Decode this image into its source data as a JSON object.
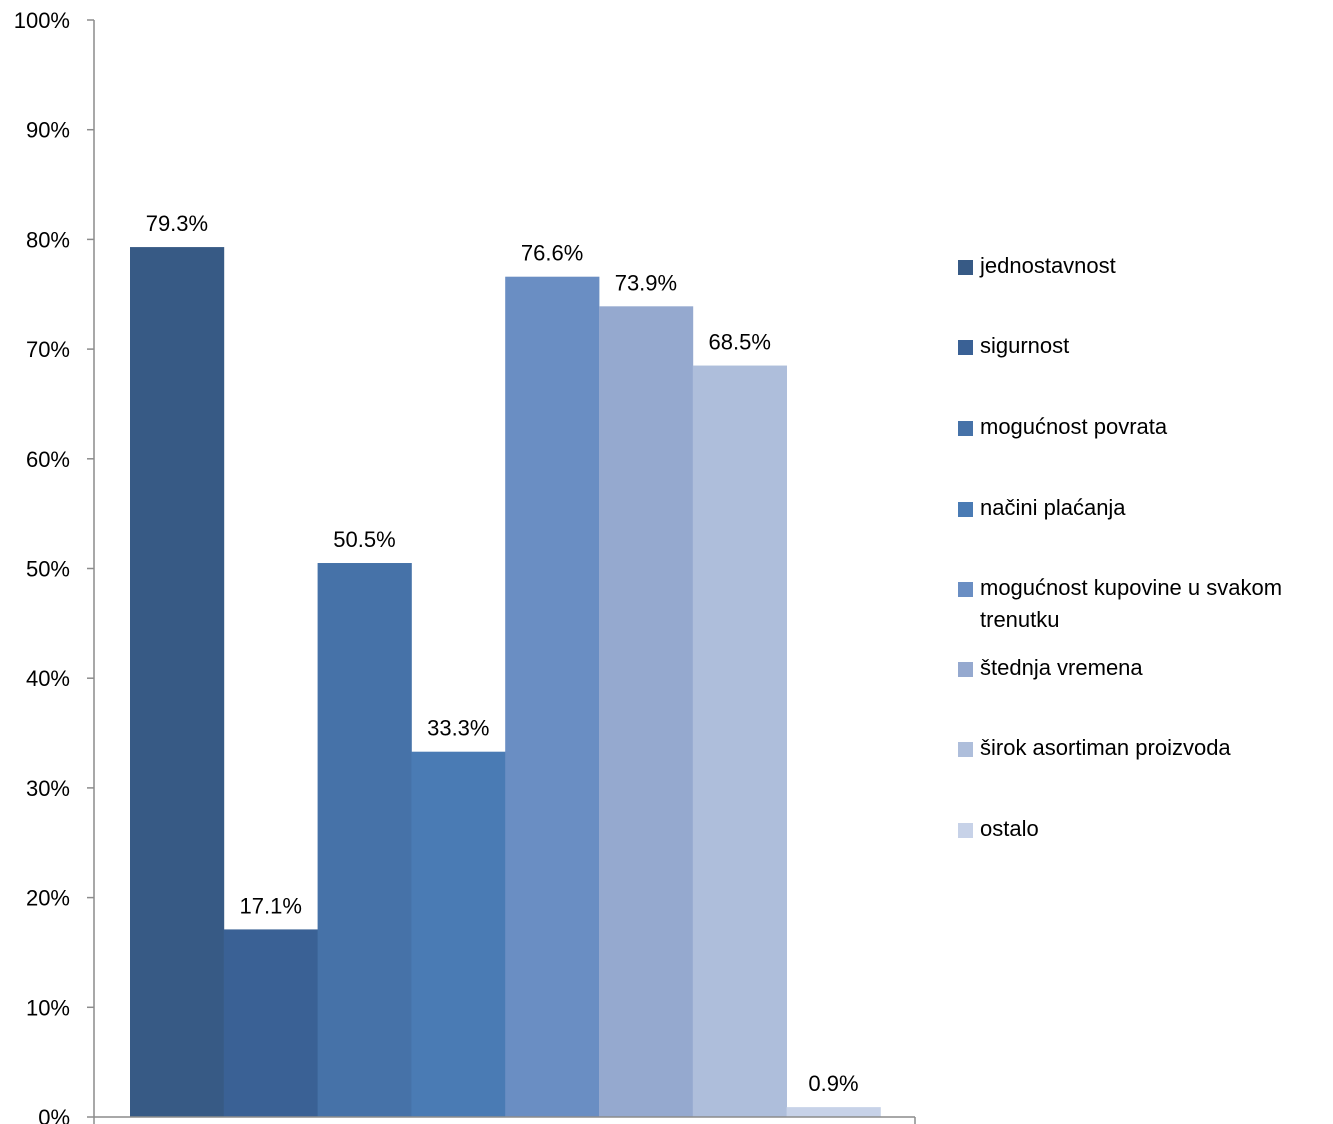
{
  "chart_data": {
    "type": "bar",
    "ylim": [
      0,
      100
    ],
    "yticks": [
      "0%",
      "10%",
      "20%",
      "30%",
      "40%",
      "50%",
      "60%",
      "70%",
      "80%",
      "90%",
      "100%"
    ],
    "legend_position": "right",
    "grid": false,
    "series": [
      {
        "name": "jednostavnost",
        "value": 79.3,
        "label": "79.3%",
        "color": "#375A85"
      },
      {
        "name": "sigurnost",
        "value": 17.1,
        "label": "17.1%",
        "color": "#3A6195"
      },
      {
        "name": "mogućnost povrata",
        "value": 50.5,
        "label": "50.5%",
        "color": "#4672A8"
      },
      {
        "name": "načini plaćanja",
        "value": 33.3,
        "label": "33.3%",
        "color": "#4A7BB4"
      },
      {
        "name": "mogućnost kupovine u svakom trenutku",
        "value": 76.6,
        "label": "76.6%",
        "color": "#6A8EC3"
      },
      {
        "name": "štednja vremena",
        "value": 73.9,
        "label": "73.9%",
        "color": "#95A9CF"
      },
      {
        "name": "širok asortiman proizvoda",
        "value": 68.5,
        "label": "68.5%",
        "color": "#AEBEDB"
      },
      {
        "name": "ostalo",
        "value": 0.9,
        "label": "0.9%",
        "color": "#C7D2E8"
      }
    ]
  }
}
